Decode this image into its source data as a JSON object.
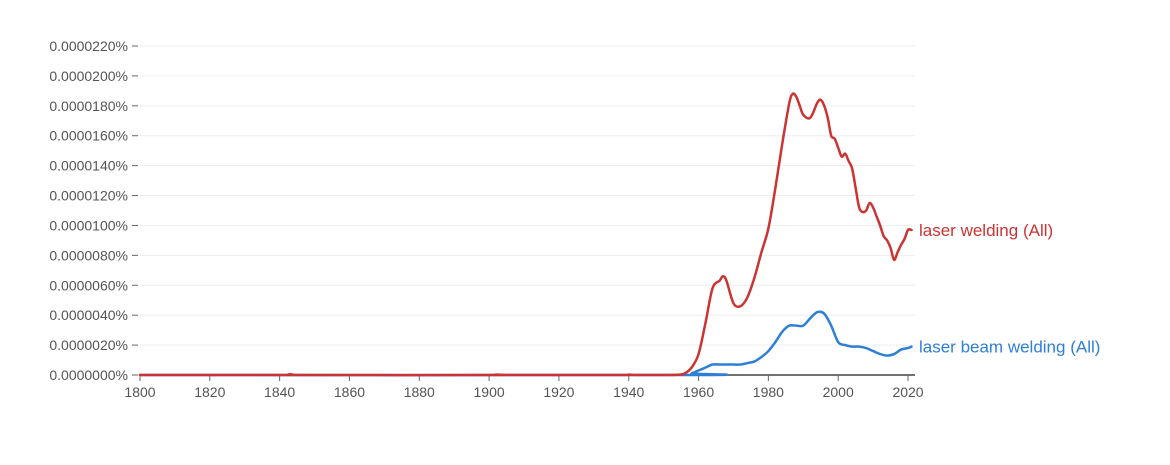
{
  "chart_data": {
    "type": "line",
    "title": "",
    "xlabel": "",
    "ylabel": "",
    "xlim": [
      1800,
      2022
    ],
    "ylim": [
      0,
      2.2e-05
    ],
    "grid": true,
    "legend": "inline-right",
    "x_ticks": [
      1800,
      1820,
      1840,
      1860,
      1880,
      1900,
      1920,
      1940,
      1960,
      1980,
      2000,
      2020
    ],
    "y_ticks": [
      {
        "value": 0,
        "label": "0.0000000%"
      },
      {
        "value": 2e-06,
        "label": "0.0000020%"
      },
      {
        "value": 4e-06,
        "label": "0.0000040%"
      },
      {
        "value": 6e-06,
        "label": "0.0000060%"
      },
      {
        "value": 8e-06,
        "label": "0.0000080%"
      },
      {
        "value": 1e-05,
        "label": "0.0000100%"
      },
      {
        "value": 1.2e-05,
        "label": "0.0000120%"
      },
      {
        "value": 1.4e-05,
        "label": "0.0000140%"
      },
      {
        "value": 1.6e-05,
        "label": "0.0000160%"
      },
      {
        "value": 1.8e-05,
        "label": "0.0000180%"
      },
      {
        "value": 2e-05,
        "label": "0.0000200%"
      },
      {
        "value": 2.2e-05,
        "label": "0.0000220%"
      }
    ],
    "series": [
      {
        "name": "laser welding (All)",
        "color": "#cc3333",
        "points": [
          [
            1800,
            0
          ],
          [
            1840,
            0
          ],
          [
            1843,
            5e-08
          ],
          [
            1848,
            0
          ],
          [
            1900,
            0
          ],
          [
            1902,
            3e-08
          ],
          [
            1905,
            0
          ],
          [
            1938,
            0
          ],
          [
            1940,
            3e-08
          ],
          [
            1942,
            0
          ],
          [
            1950,
            0
          ],
          [
            1954,
            2e-08
          ],
          [
            1956,
            1e-07
          ],
          [
            1958,
            5e-07
          ],
          [
            1960,
            1.4e-06
          ],
          [
            1962,
            3.5e-06
          ],
          [
            1964,
            5.8e-06
          ],
          [
            1966,
            6.3e-06
          ],
          [
            1967,
            6.6e-06
          ],
          [
            1968,
            6.3e-06
          ],
          [
            1970,
            4.8e-06
          ],
          [
            1972,
            4.6e-06
          ],
          [
            1974,
            5.2e-06
          ],
          [
            1976,
            6.5e-06
          ],
          [
            1978,
            8.2e-06
          ],
          [
            1980,
            9.8e-06
          ],
          [
            1982,
            1.25e-05
          ],
          [
            1984,
            1.55e-05
          ],
          [
            1986,
            1.82e-05
          ],
          [
            1987,
            1.88e-05
          ],
          [
            1988,
            1.86e-05
          ],
          [
            1989,
            1.8e-05
          ],
          [
            1990,
            1.74e-05
          ],
          [
            1992,
            1.72e-05
          ],
          [
            1994,
            1.82e-05
          ],
          [
            1995,
            1.84e-05
          ],
          [
            1996,
            1.8e-05
          ],
          [
            1997,
            1.72e-05
          ],
          [
            1998,
            1.6e-05
          ],
          [
            1999,
            1.58e-05
          ],
          [
            2000,
            1.52e-05
          ],
          [
            2001,
            1.46e-05
          ],
          [
            2002,
            1.48e-05
          ],
          [
            2003,
            1.43e-05
          ],
          [
            2004,
            1.38e-05
          ],
          [
            2005,
            1.25e-05
          ],
          [
            2006,
            1.12e-05
          ],
          [
            2007,
            1.09e-05
          ],
          [
            2008,
            1.1e-05
          ],
          [
            2009,
            1.15e-05
          ],
          [
            2010,
            1.12e-05
          ],
          [
            2011,
            1.06e-05
          ],
          [
            2012,
            1e-05
          ],
          [
            2013,
            9.3e-06
          ],
          [
            2014,
            9e-06
          ],
          [
            2015,
            8.5e-06
          ],
          [
            2016,
            7.7e-06
          ],
          [
            2017,
            8.2e-06
          ],
          [
            2018,
            8.7e-06
          ],
          [
            2019,
            9.1e-06
          ],
          [
            2020,
            9.7e-06
          ],
          [
            2021,
            9.7e-06
          ]
        ]
      },
      {
        "name": "laser beam welding (All)",
        "color": "#2e7fd6",
        "points": [
          [
            1800,
            0
          ],
          [
            1956,
            0
          ],
          [
            1958,
            1e-07
          ],
          [
            1960,
            3e-07
          ],
          [
            1962,
            5e-07
          ],
          [
            1964,
            7e-07
          ],
          [
            1966,
            7e-07
          ],
          [
            1968,
            7e-07
          ],
          [
            1970,
            7e-07
          ],
          [
            1972,
            7e-07
          ],
          [
            1974,
            8e-07
          ],
          [
            1976,
            9e-07
          ],
          [
            1978,
            1.2e-06
          ],
          [
            1980,
            1.6e-06
          ],
          [
            1982,
            2.2e-06
          ],
          [
            1984,
            2.9e-06
          ],
          [
            1986,
            3.3e-06
          ],
          [
            1988,
            3.3e-06
          ],
          [
            1990,
            3.3e-06
          ],
          [
            1992,
            3.8e-06
          ],
          [
            1994,
            4.2e-06
          ],
          [
            1996,
            4.1e-06
          ],
          [
            1998,
            3.3e-06
          ],
          [
            2000,
            2.2e-06
          ],
          [
            2002,
            2e-06
          ],
          [
            2004,
            1.9e-06
          ],
          [
            2006,
            1.9e-06
          ],
          [
            2008,
            1.8e-06
          ],
          [
            2010,
            1.6e-06
          ],
          [
            2012,
            1.4e-06
          ],
          [
            2014,
            1.3e-06
          ],
          [
            2016,
            1.4e-06
          ],
          [
            2018,
            1.7e-06
          ],
          [
            2020,
            1.8e-06
          ],
          [
            2021,
            1.9e-06
          ]
        ]
      }
    ]
  }
}
